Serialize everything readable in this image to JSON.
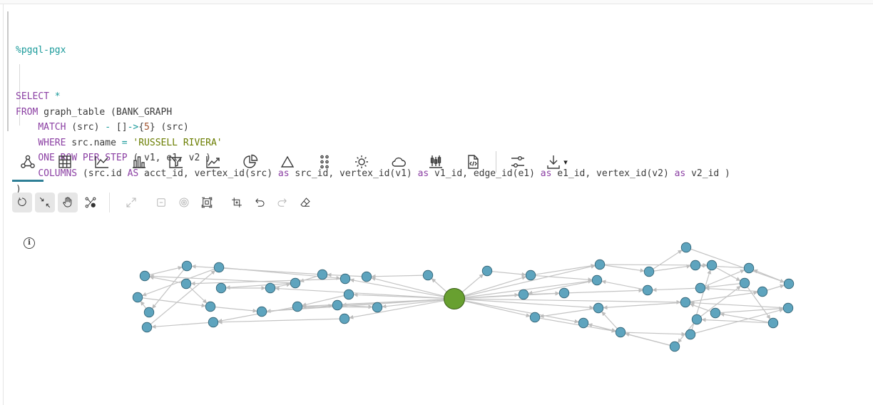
{
  "query": {
    "magic": "%pgql-pgx",
    "lines": [
      {
        "parts": [
          [
            "kw",
            "SELECT"
          ],
          [
            "txt",
            " "
          ],
          [
            "op",
            "*"
          ]
        ]
      },
      {
        "parts": [
          [
            "kw",
            "FROM"
          ],
          [
            "txt",
            " graph_table (BANK_GRAPH"
          ]
        ]
      },
      {
        "parts": [
          [
            "txt",
            "    "
          ],
          [
            "kw",
            "MATCH"
          ],
          [
            "txt",
            " (src) "
          ],
          [
            "op",
            "-"
          ],
          [
            "txt",
            " []"
          ],
          [
            "op",
            "->"
          ],
          [
            "txt",
            "{"
          ],
          [
            "num",
            "5"
          ],
          [
            "txt",
            "} (src)"
          ]
        ]
      },
      {
        "parts": [
          [
            "txt",
            "    "
          ],
          [
            "kw",
            "WHERE"
          ],
          [
            "txt",
            " src.name "
          ],
          [
            "op",
            "="
          ],
          [
            "txt",
            " "
          ],
          [
            "str",
            "'RUSSELL RIVERA'"
          ]
        ]
      },
      {
        "parts": [
          [
            "txt",
            "    "
          ],
          [
            "kw",
            "ONE ROW PER STEP"
          ],
          [
            "txt",
            " ( v1, e1, v2 )"
          ]
        ]
      },
      {
        "parts": [
          [
            "txt",
            "    "
          ],
          [
            "kw",
            "COLUMNS"
          ],
          [
            "txt",
            " (src.id "
          ],
          [
            "kw",
            "AS"
          ],
          [
            "txt",
            " acct_id, vertex_id(src) "
          ],
          [
            "kw",
            "as"
          ],
          [
            "txt",
            " src_id, vertex_id(v1) "
          ],
          [
            "kw",
            "as"
          ],
          [
            "txt",
            " v1_id, edge_id(e1) "
          ],
          [
            "kw",
            "as"
          ],
          [
            "txt",
            " e1_id, vertex_id(v2) "
          ],
          [
            "kw",
            "as"
          ],
          [
            "txt",
            " v2_id )"
          ]
        ]
      },
      {
        "parts": [
          [
            "txt",
            ")"
          ]
        ]
      }
    ]
  },
  "viz_toolbar": {
    "buttons": [
      {
        "name": "graph-icon",
        "active": true
      },
      {
        "name": "table-icon"
      },
      {
        "name": "line-chart-icon"
      },
      {
        "name": "bar-chart-icon"
      },
      {
        "name": "pivot-icon"
      },
      {
        "name": "trend-chart-icon"
      },
      {
        "name": "pie-chart-icon"
      },
      {
        "name": "triangle-icon"
      },
      {
        "name": "dot-grid-icon"
      },
      {
        "name": "sun-icon"
      },
      {
        "name": "cloud-icon"
      },
      {
        "name": "candlestick-icon"
      },
      {
        "name": "code-file-icon"
      }
    ],
    "settings_icon": "sliders-icon",
    "download_icon": "download-icon",
    "download_caret": "▾"
  },
  "graph_toolbar": {
    "buttons": [
      {
        "name": "rotate-icon",
        "state": "toggled"
      },
      {
        "name": "collapse-icon",
        "state": "toggled"
      },
      {
        "name": "hand-icon",
        "state": "toggled"
      },
      {
        "name": "network-settings-icon",
        "state": "normal"
      },
      {
        "name": "expand-icon",
        "state": "disabled"
      },
      {
        "name": "minus-box-icon",
        "state": "disabled"
      },
      {
        "name": "focus-icon",
        "state": "disabled"
      },
      {
        "name": "fit-frame-icon",
        "state": "normal"
      },
      {
        "name": "layout-icon",
        "state": "normal"
      },
      {
        "name": "undo-icon",
        "state": "normal"
      },
      {
        "name": "redo-icon",
        "state": "disabled"
      },
      {
        "name": "eraser-icon",
        "state": "normal"
      }
    ]
  },
  "info_glyph": "i",
  "colors": {
    "vertex": "#5ea4be",
    "center_vertex": "#68a030",
    "edge": "#c4c4c4",
    "accent": "#2e7f96"
  }
}
